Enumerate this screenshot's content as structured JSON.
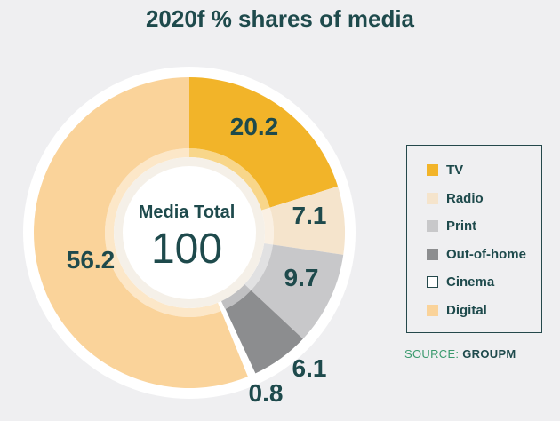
{
  "chart_data": {
    "type": "pie",
    "title": "2020f % shares of media",
    "center": {
      "label": "Media Total",
      "value": "100"
    },
    "slices": [
      {
        "name": "TV",
        "value": 20.2,
        "label": "20.2",
        "color": "#f2b429"
      },
      {
        "name": "Radio",
        "value": 7.1,
        "label": "7.1",
        "color": "#f5e4cc"
      },
      {
        "name": "Print",
        "value": 9.7,
        "label": "9.7",
        "color": "#c8c8ca"
      },
      {
        "name": "Out-of-home",
        "value": 6.1,
        "label": "6.1",
        "color": "#8c8d8f"
      },
      {
        "name": "Cinema",
        "value": 0.8,
        "label": "0.8",
        "color": "#ffffff"
      },
      {
        "name": "Digital",
        "value": 56.2,
        "label": "56.2",
        "color": "#fad39a"
      }
    ],
    "legend_position": "right"
  },
  "source": {
    "prefix": "SOURCE: ",
    "name": "GROUPM"
  }
}
